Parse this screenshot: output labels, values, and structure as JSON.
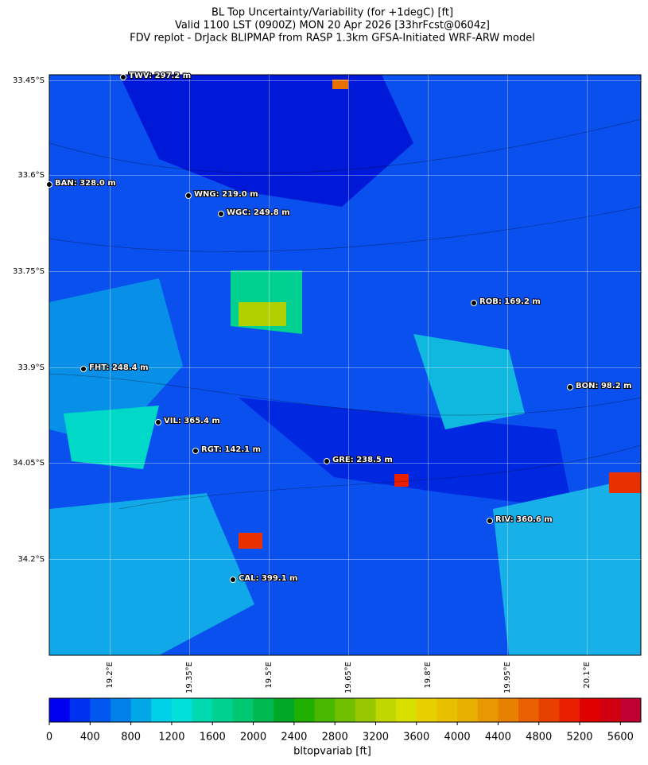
{
  "header": {
    "title_lines": [
      "BL Top Uncertainty/Variability (for +1degC) [ft]",
      "Valid 1100 LST (0900Z) MON 20 Apr 2026 [33hrFcst@0604z]",
      "FDV replot - DrJack BLIPMAP from RASP 1.3km GFSA-Initiated WRF-ARW model"
    ]
  },
  "map": {
    "lat_labels": [
      "33.45°S",
      "33.6°S",
      "33.75°S",
      "33.9°S",
      "34.05°S",
      "34.2°S"
    ],
    "lon_labels": [
      "19.2°E",
      "19.35°E",
      "19.5°E",
      "19.65°E",
      "19.8°E",
      "19.95°E",
      "20.1°E"
    ],
    "stations": [
      {
        "label": "TWV: 297.2 m"
      },
      {
        "label": "BAN: 328.0 m"
      },
      {
        "label": "WNG: 219.0 m"
      },
      {
        "label": "WGC: 249.8 m"
      },
      {
        "label": "ROB: 169.2 m"
      },
      {
        "label": "FHT: 248.4 m"
      },
      {
        "label": "BON: 98.2 m"
      },
      {
        "label": "VIL: 365.4 m"
      },
      {
        "label": "RGT: 142.1 m"
      },
      {
        "label": "GRE: 238.5 m"
      },
      {
        "label": "RIV: 360.6 m"
      },
      {
        "label": "CAL: 399.1 m"
      }
    ]
  },
  "colorbar": {
    "label": "bltopvariab [ft]",
    "lim": [
      0,
      5800
    ],
    "ticks": [
      0,
      400,
      800,
      1200,
      1600,
      2000,
      2400,
      2800,
      3200,
      3600,
      4000,
      4400,
      4800,
      5200,
      5600
    ],
    "colors": [
      "#0000f0",
      "#0030f0",
      "#0058f0",
      "#0080e8",
      "#00a8e8",
      "#00d0e8",
      "#00e0d8",
      "#00d8b0",
      "#00d090",
      "#00c870",
      "#00b850",
      "#00a828",
      "#20b000",
      "#48b800",
      "#70c000",
      "#98c800",
      "#c0d800",
      "#d8e000",
      "#e8d000",
      "#e8c000",
      "#e8b000",
      "#e89800",
      "#e88000",
      "#e86000",
      "#e84000",
      "#e82000",
      "#e00000",
      "#d00010",
      "#c00030"
    ]
  }
}
